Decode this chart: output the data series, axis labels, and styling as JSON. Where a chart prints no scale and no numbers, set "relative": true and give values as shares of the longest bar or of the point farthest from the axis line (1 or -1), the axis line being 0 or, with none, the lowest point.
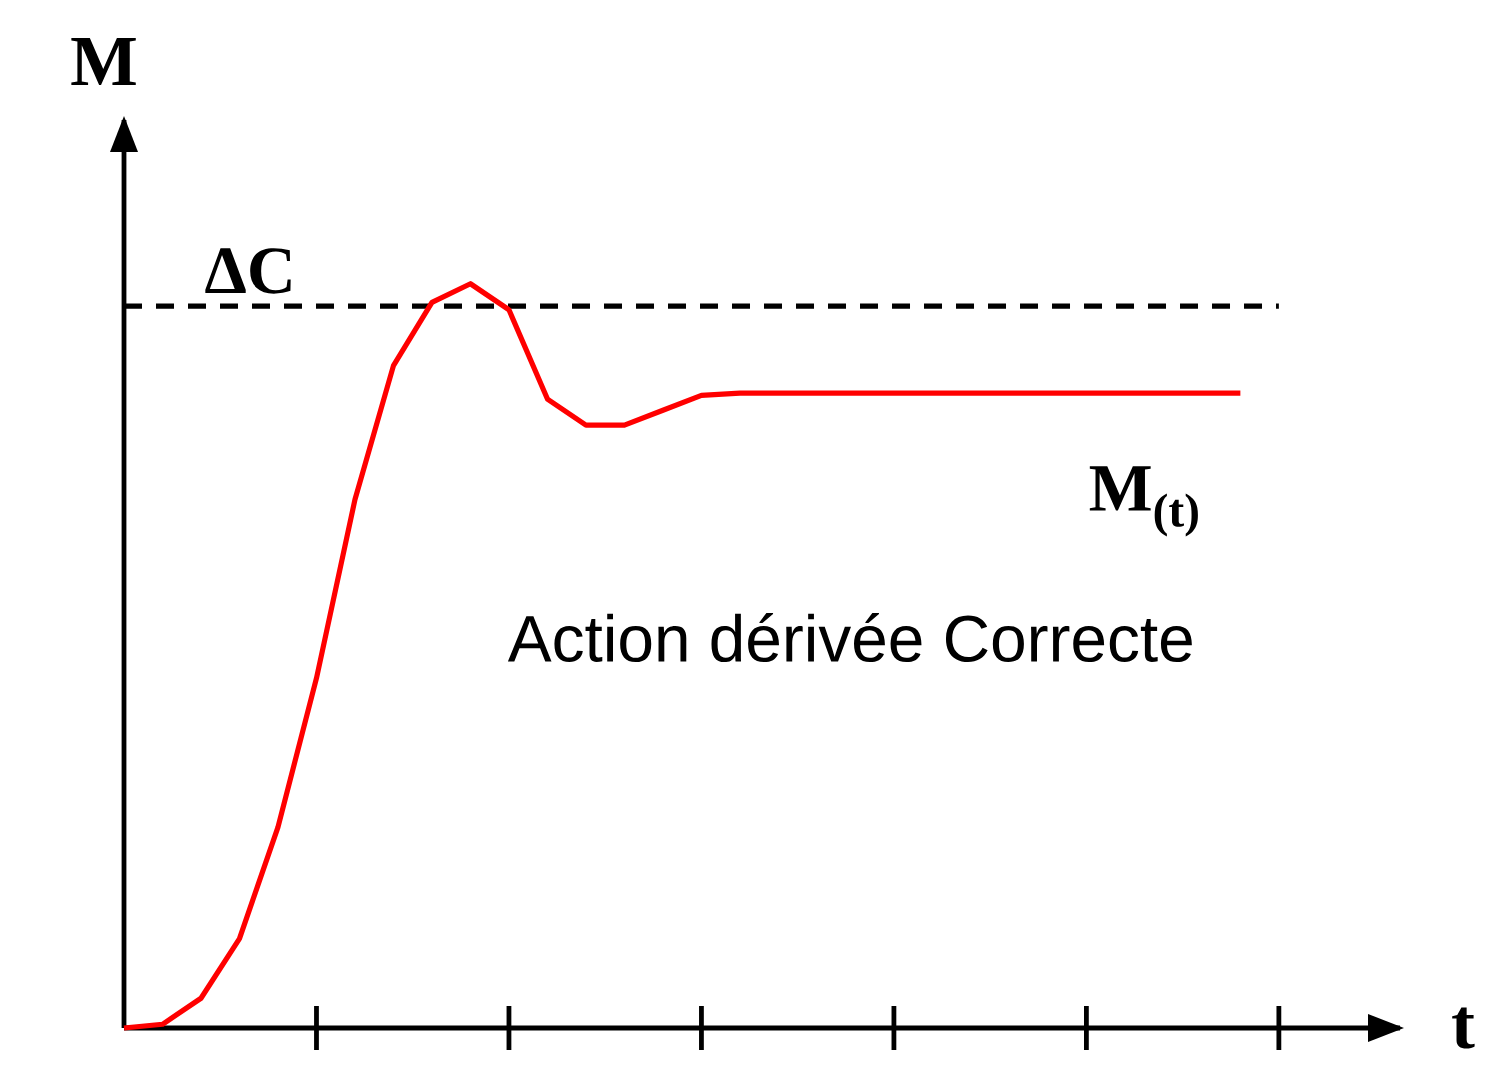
{
  "chart_data": {
    "type": "line",
    "relative": true,
    "xlabel": "t",
    "ylabel": "M",
    "categories": [
      null,
      null,
      null,
      null,
      null,
      null,
      null,
      null,
      null,
      null,
      null,
      null,
      null,
      null,
      null,
      null,
      null,
      null,
      null,
      null,
      null,
      null,
      null,
      null,
      null,
      null,
      null,
      null,
      null,
      null
    ],
    "series": [
      {
        "color": "#ff0000",
        "values": [
          0,
          0.005,
          0.04,
          0.12,
          0.27,
          0.47,
          0.71,
          0.89,
          0.975,
          1.0,
          0.965,
          0.845,
          0.81,
          0.81,
          0.83,
          0.85,
          0.853,
          0.853,
          0.853,
          0.853,
          0.853,
          0.853,
          0.853,
          0.853,
          0.853,
          0.853,
          0.853,
          0.853,
          0.853,
          0.853
        ]
      }
    ],
    "ref_lines": [
      {
        "axis": "y",
        "value": 0.97,
        "label": "ΔC",
        "color": "#000000",
        "line_style": "dashed"
      }
    ],
    "annotations": [
      "Action dérivée Correcte",
      "M$_{(t)}$"
    ],
    "marker": "none",
    "line_style": "solid"
  }
}
